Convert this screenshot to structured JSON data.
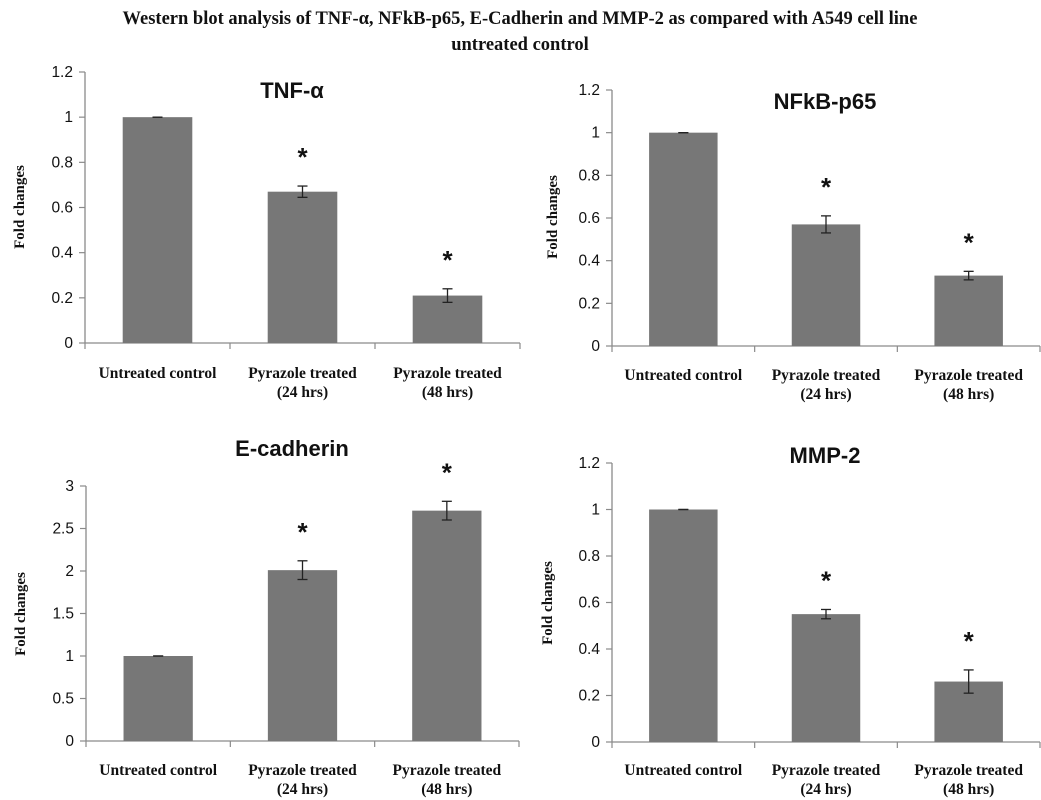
{
  "figure_title_line1": "Western blot  analysis of TNF-α,  NFkB-p65,  E-Cadherin and MMP-2 as compared with A549 cell line",
  "figure_title_line2": "untreated control",
  "colors": {
    "bar": "#777777",
    "axis": "#8a8a8a",
    "text": "#111111"
  },
  "chart_data": [
    {
      "type": "bar",
      "title": "TNF-α",
      "ylabel": "Fold changes",
      "xlabel": "",
      "ylim": [
        0,
        1.2
      ],
      "yticks": [
        "0",
        "0.2",
        "0.4",
        "0.6",
        "0.8",
        "1",
        "1.2"
      ],
      "categories": [
        [
          "Untreated control"
        ],
        [
          "Pyrazole treated",
          "(24 hrs)"
        ],
        [
          "Pyrazole treated",
          "(48 hrs)"
        ]
      ],
      "values": [
        1.0,
        0.67,
        0.21
      ],
      "errors": [
        0.0,
        0.025,
        0.03
      ],
      "annotations": [
        "",
        "*",
        "*"
      ],
      "grid": false
    },
    {
      "type": "bar",
      "title": "NFkB-p65",
      "ylabel": "Fold changes",
      "xlabel": "",
      "ylim": [
        0,
        1.2
      ],
      "yticks": [
        "0",
        "0.2",
        "0.4",
        "0.6",
        "0.8",
        "1",
        "1.2"
      ],
      "categories": [
        [
          "Untreated control"
        ],
        [
          "Pyrazole treated",
          "(24 hrs)"
        ],
        [
          "Pyrazole treated",
          "(48 hrs)"
        ]
      ],
      "values": [
        1.0,
        0.57,
        0.33
      ],
      "errors": [
        0.0,
        0.04,
        0.02
      ],
      "annotations": [
        "",
        "*",
        "*"
      ],
      "grid": false
    },
    {
      "type": "bar",
      "title": "E-cadherin",
      "ylabel": "Fold changes",
      "xlabel": "",
      "ylim": [
        0,
        3
      ],
      "yticks": [
        "0",
        "0.5",
        "1",
        "1.5",
        "2",
        "2.5",
        "3"
      ],
      "categories": [
        [
          "Untreated control"
        ],
        [
          "Pyrazole treated",
          "(24 hrs)"
        ],
        [
          "Pyrazole treated",
          "(48 hrs)"
        ]
      ],
      "values": [
        1.0,
        2.01,
        2.71
      ],
      "errors": [
        0.0,
        0.11,
        0.11
      ],
      "annotations": [
        "",
        "*",
        "*"
      ],
      "grid": false
    },
    {
      "type": "bar",
      "title": "MMP-2",
      "ylabel": "Fold changes",
      "xlabel": "",
      "ylim": [
        0,
        1.2
      ],
      "yticks": [
        "0",
        "0.2",
        "0.4",
        "0.6",
        "0.8",
        "1",
        "1.2"
      ],
      "categories": [
        [
          "Untreated control"
        ],
        [
          "Pyrazole treated",
          "(24 hrs)"
        ],
        [
          "Pyrazole treated",
          "(48 hrs)"
        ]
      ],
      "values": [
        1.0,
        0.55,
        0.26
      ],
      "errors": [
        0.0,
        0.02,
        0.05
      ],
      "annotations": [
        "",
        "*",
        "*"
      ],
      "grid": false
    }
  ]
}
